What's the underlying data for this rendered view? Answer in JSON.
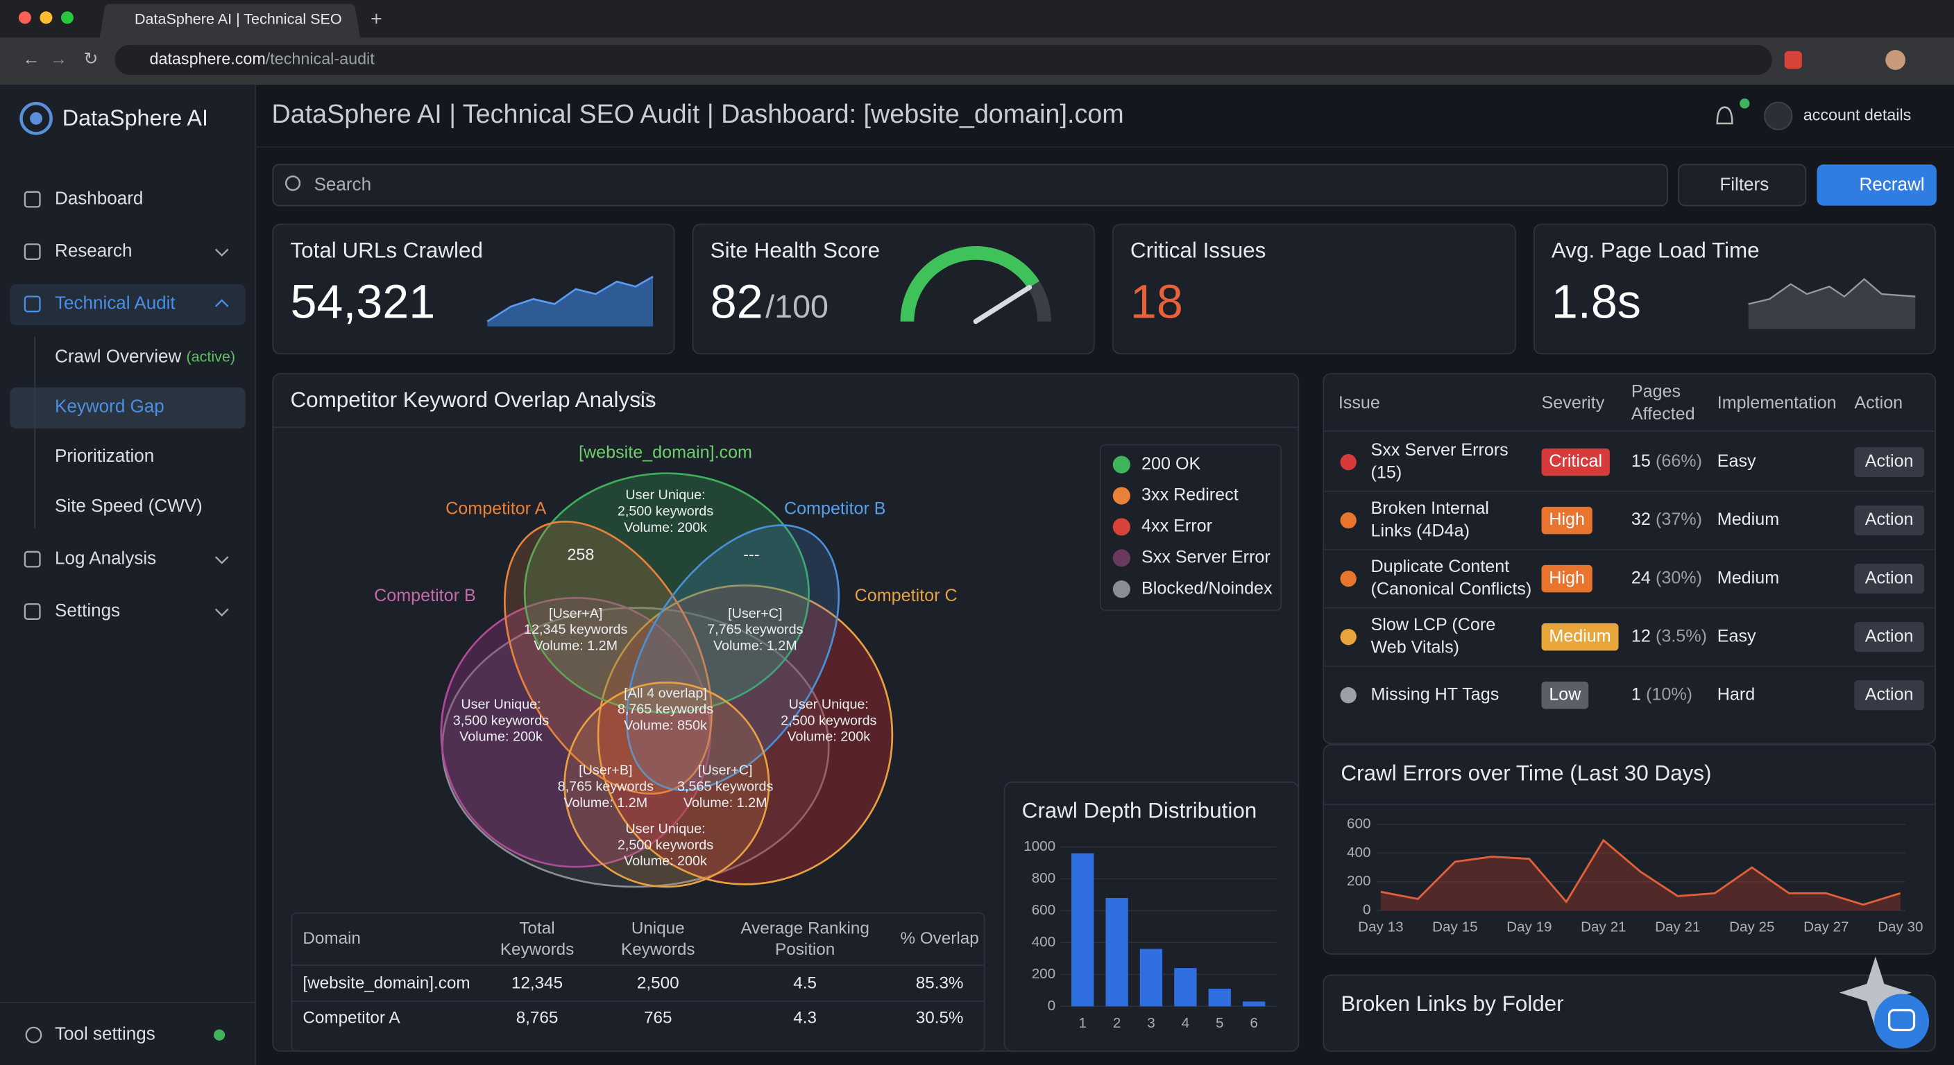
{
  "browser": {
    "tab_title": "DataSphere AI | Technical SEO",
    "url_domain": "datasphere.com",
    "url_path": "/technical-audit"
  },
  "sidebar": {
    "brand": "DataSphere AI",
    "nav": [
      {
        "label": "Dashboard"
      },
      {
        "label": "Research"
      },
      {
        "label": "Technical Audit"
      },
      {
        "label": "Crawl Overview",
        "badge": "(active)"
      },
      {
        "label": "Keyword Gap"
      },
      {
        "label": "Prioritization"
      },
      {
        "label": "Site Speed (CWV)"
      },
      {
        "label": "Log Analysis"
      },
      {
        "label": "Settings"
      }
    ],
    "footer": "Tool settings"
  },
  "header": {
    "title": "DataSphere AI | Technical SEO Audit | Dashboard: [website_domain].com",
    "account": "account details",
    "search_placeholder": "Search",
    "filters": "Filters",
    "recrawl": "Recrawl"
  },
  "kpis": {
    "urls": {
      "label": "Total URLs Crawled",
      "value": "54,321"
    },
    "health": {
      "label": "Site Health Score",
      "value": 82,
      "max": 100,
      "max_label": "/100"
    },
    "critical": {
      "label": "Critical Issues",
      "value": "18"
    },
    "load": {
      "label": "Avg. Page Load Time",
      "value": "1.8s"
    }
  },
  "venn": {
    "title": "Competitor Keyword Overlap Analysis",
    "sets": [
      "[website_domain].com",
      "Competitor A",
      "Competitor B",
      "Competitor B",
      "Competitor C"
    ],
    "regions": [
      {
        "lines": [
          "User Unique:",
          "2,500 keywords",
          "Volume: 200k"
        ]
      },
      {
        "lines": [
          "258"
        ]
      },
      {
        "lines": [
          "---"
        ]
      },
      {
        "lines": [
          "[User+A]",
          "12,345 keywords",
          "Volume: 1.2M"
        ]
      },
      {
        "lines": [
          "[User+C]",
          "7,765 keywords",
          "Volume: 1.2M"
        ]
      },
      {
        "lines": [
          "[All 4 overlap]",
          "8,765 keywords",
          "Volume: 850k"
        ]
      },
      {
        "lines": [
          "User Unique:",
          "3,500 keywords",
          "Volume: 200k"
        ]
      },
      {
        "lines": [
          "User Unique:",
          "2,500 keywords",
          "Volume: 200k"
        ]
      },
      {
        "lines": [
          "[User+B]",
          "8,765 keywords",
          "Volume: 1.2M"
        ]
      },
      {
        "lines": [
          "[User+C]",
          "3,565 keywords",
          "Volume: 1.2M"
        ]
      },
      {
        "lines": [
          "User Unique:",
          "2,500 keywords",
          "Volume: 200k"
        ]
      }
    ],
    "legend": [
      {
        "label": "200 OK",
        "color": "#3fb45a"
      },
      {
        "label": "3xx Redirect",
        "color": "#e8813a"
      },
      {
        "label": "4xx Error",
        "color": "#d9443a"
      },
      {
        "label": "Sxx Server Error",
        "color": "#6a3a5e"
      },
      {
        "label": "Blocked/Noindex",
        "color": "#8a8d92"
      }
    ]
  },
  "domain_table": {
    "headers": [
      [
        "Domain"
      ],
      [
        "Total",
        "Keywords"
      ],
      [
        "Unique",
        "Keywords"
      ],
      [
        "Average Ranking",
        "Position"
      ],
      [
        "% Overlap"
      ]
    ],
    "rows": [
      [
        "[website_domain].com",
        "12,345",
        "2,500",
        "4.5",
        "85.3%"
      ],
      [
        "Competitor A",
        "8,765",
        "765",
        "4.3",
        "30.5%"
      ]
    ]
  },
  "issues": {
    "headers": [
      [
        "Issue"
      ],
      [
        "Severity"
      ],
      [
        "Pages",
        "Affected"
      ],
      [
        "Implementation"
      ],
      [
        "Action"
      ]
    ],
    "rows": [
      {
        "issue": [
          "Sxx Server Errors",
          "(15)"
        ],
        "severity": "Critical",
        "pages": "15",
        "pct": "(66%)",
        "impl": "Easy",
        "action": "Action"
      },
      {
        "issue": [
          "Broken Internal",
          "Links (4D4a)"
        ],
        "severity": "High",
        "pages": "32",
        "pct": "(37%)",
        "impl": "Medium",
        "action": "Action"
      },
      {
        "issue": [
          "Duplicate Content",
          "(Canonical Conflicts)"
        ],
        "severity": "High",
        "pages": "24",
        "pct": "(30%)",
        "impl": "Medium",
        "action": "Action"
      },
      {
        "issue": [
          "Slow LCP (Core",
          "Web Vitals)"
        ],
        "severity": "Medium",
        "pages": "12",
        "pct": "(3.5%)",
        "impl": "Easy",
        "action": "Action"
      },
      {
        "issue": [
          "Missing HT Tags"
        ],
        "severity": "Low",
        "pages": "1",
        "pct": "(10%)",
        "impl": "Hard",
        "action": "Action"
      }
    ]
  },
  "broken_links": {
    "title": "Broken Links by Folder"
  },
  "chart_data": [
    {
      "type": "bar",
      "title": "Crawl Depth Distribution",
      "categories": [
        "1",
        "2",
        "3",
        "4",
        "5",
        "6"
      ],
      "values": [
        960,
        680,
        360,
        240,
        110,
        30
      ],
      "color": "#2f6fe0",
      "ylim": [
        0,
        1000
      ],
      "yticks": [
        0,
        200,
        400,
        600,
        800,
        1000
      ],
      "grid": true
    },
    {
      "type": "line",
      "title": "Crawl Errors over Time (Last 30 Days)",
      "categories": [
        "Day 13",
        null,
        "Day 15",
        null,
        "Day 19",
        null,
        "Day 21",
        null,
        "Day 21",
        null,
        "Day 25",
        null,
        "Day 27",
        null,
        "Day 30"
      ],
      "values": [
        130,
        80,
        340,
        375,
        360,
        60,
        490,
        270,
        100,
        120,
        300,
        120,
        120,
        40,
        120
      ],
      "color": "#e0603a",
      "ylim": [
        0,
        600
      ],
      "yticks": [
        0,
        200,
        400,
        600
      ],
      "grid": true
    }
  ]
}
